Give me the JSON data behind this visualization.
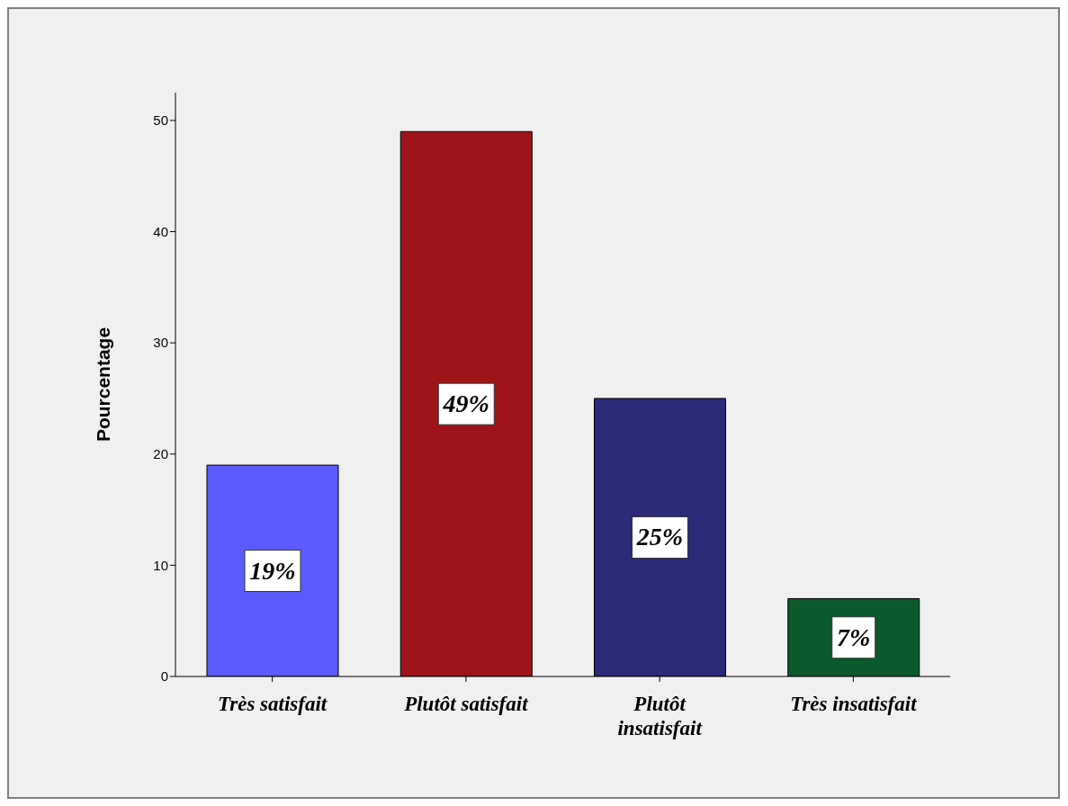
{
  "chart_data": {
    "type": "bar",
    "ylabel": "Pourcentage",
    "categories": [
      "Très satisfait",
      "Plutôt satisfait",
      "Plutôt insatisfait",
      "Très insatisfait"
    ],
    "values": [
      19,
      49,
      25,
      7
    ],
    "colors": [
      "#5b5bff",
      "#9e1519",
      "#2a2a78",
      "#0b5a2c"
    ],
    "value_labels": [
      "19%",
      "49%",
      "25%",
      "7%"
    ],
    "ylim": [
      0,
      52.5
    ],
    "yticks": [
      0,
      10,
      20,
      30,
      40,
      50
    ],
    "grid": false,
    "legend": false
  }
}
